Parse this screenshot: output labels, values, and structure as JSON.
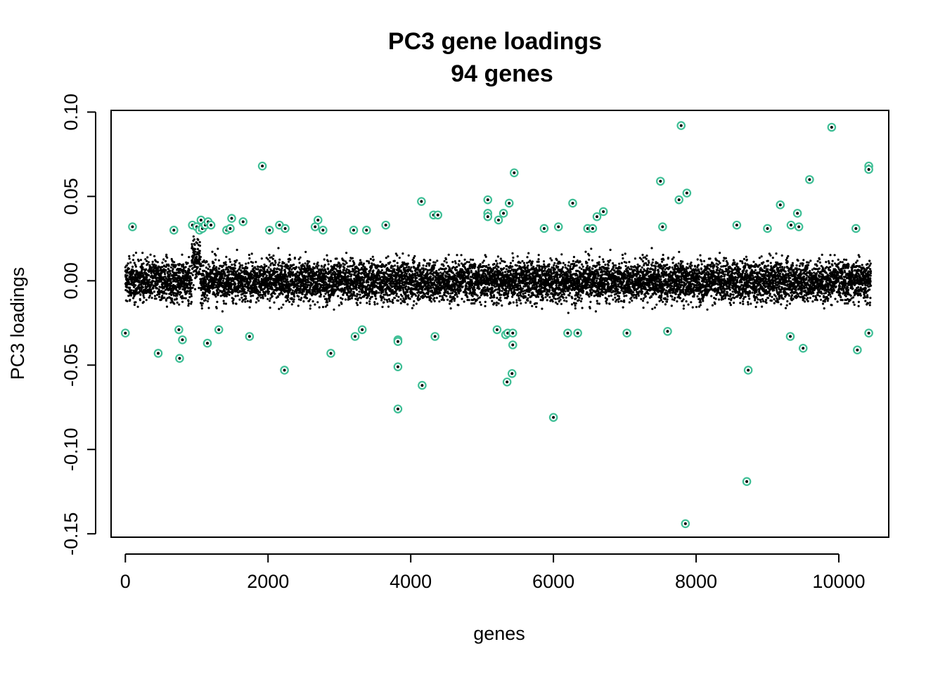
{
  "chart_data": {
    "type": "scatter",
    "title": "PC3 gene loadings",
    "subtitle": "94 genes",
    "xlabel": "genes",
    "ylabel": "PC3 loadings",
    "xlim": [
      -200,
      10700
    ],
    "ylim": [
      -0.152,
      0.101
    ],
    "x_ticks": [
      0,
      2000,
      4000,
      6000,
      8000,
      10000
    ],
    "x_tick_labels": [
      "0",
      "2000",
      "4000",
      "6000",
      "8000",
      "10000"
    ],
    "y_ticks": [
      -0.15,
      -0.1,
      -0.05,
      0.0,
      0.05,
      0.1
    ],
    "y_tick_labels": [
      "-0.15",
      "-0.10",
      "-0.05",
      "0.00",
      "0.05",
      "0.10"
    ],
    "grid": false,
    "legend": "none",
    "colors": {
      "points": "#000000",
      "highlight": "#3fbf96",
      "axis": "#000000"
    },
    "bulk": {
      "description_n_genes": 10450,
      "x_range": [
        0,
        10450
      ],
      "typical_range": [
        -0.02,
        0.02
      ],
      "bump_region": {
        "x": [
          930,
          1050
        ],
        "y_offset": 0.015
      }
    },
    "highlighted_genes": [
      {
        "x": 0,
        "y": -0.031
      },
      {
        "x": 100,
        "y": 0.032
      },
      {
        "x": 460,
        "y": -0.043
      },
      {
        "x": 680,
        "y": 0.03
      },
      {
        "x": 750,
        "y": -0.029
      },
      {
        "x": 760,
        "y": -0.046
      },
      {
        "x": 800,
        "y": -0.035
      },
      {
        "x": 940,
        "y": 0.033
      },
      {
        "x": 1000,
        "y": 0.032
      },
      {
        "x": 1040,
        "y": 0.03
      },
      {
        "x": 1060,
        "y": 0.036
      },
      {
        "x": 1080,
        "y": 0.031
      },
      {
        "x": 1120,
        "y": 0.033
      },
      {
        "x": 1150,
        "y": -0.037
      },
      {
        "x": 1160,
        "y": 0.035
      },
      {
        "x": 1200,
        "y": 0.033
      },
      {
        "x": 1310,
        "y": -0.029
      },
      {
        "x": 1420,
        "y": 0.03
      },
      {
        "x": 1470,
        "y": 0.031
      },
      {
        "x": 1490,
        "y": 0.037
      },
      {
        "x": 1650,
        "y": 0.035
      },
      {
        "x": 1740,
        "y": -0.033
      },
      {
        "x": 1920,
        "y": 0.068
      },
      {
        "x": 2020,
        "y": 0.03
      },
      {
        "x": 2160,
        "y": 0.033
      },
      {
        "x": 2230,
        "y": -0.053
      },
      {
        "x": 2660,
        "y": 0.032
      },
      {
        "x": 2700,
        "y": 0.036
      },
      {
        "x": 2770,
        "y": 0.03
      },
      {
        "x": 2880,
        "y": -0.043
      },
      {
        "x": 3200,
        "y": 0.03
      },
      {
        "x": 3220,
        "y": -0.033
      },
      {
        "x": 3320,
        "y": -0.029
      },
      {
        "x": 3380,
        "y": 0.03
      },
      {
        "x": 3650,
        "y": 0.033
      },
      {
        "x": 3820,
        "y": -0.035
      },
      {
        "x": 3820,
        "y": -0.036
      },
      {
        "x": 3820,
        "y": -0.051
      },
      {
        "x": 3820,
        "y": -0.076
      },
      {
        "x": 4150,
        "y": 0.047
      },
      {
        "x": 4160,
        "y": -0.062
      },
      {
        "x": 4320,
        "y": 0.039
      },
      {
        "x": 4340,
        "y": -0.033
      },
      {
        "x": 4380,
        "y": 0.039
      },
      {
        "x": 5080,
        "y": 0.048
      },
      {
        "x": 5080,
        "y": 0.04
      },
      {
        "x": 5080,
        "y": 0.038
      },
      {
        "x": 5210,
        "y": -0.029
      },
      {
        "x": 5300,
        "y": 0.04
      },
      {
        "x": 5330,
        "y": -0.032
      },
      {
        "x": 5350,
        "y": -0.06
      },
      {
        "x": 5360,
        "y": -0.031
      },
      {
        "x": 5380,
        "y": 0.046
      },
      {
        "x": 5420,
        "y": -0.055
      },
      {
        "x": 5430,
        "y": -0.038
      },
      {
        "x": 5430,
        "y": -0.031
      },
      {
        "x": 5450,
        "y": 0.064
      },
      {
        "x": 5870,
        "y": 0.031
      },
      {
        "x": 6000,
        "y": -0.081
      },
      {
        "x": 6070,
        "y": 0.032
      },
      {
        "x": 6200,
        "y": -0.031
      },
      {
        "x": 6270,
        "y": 0.046
      },
      {
        "x": 6340,
        "y": -0.031
      },
      {
        "x": 6480,
        "y": 0.031
      },
      {
        "x": 6550,
        "y": 0.031
      },
      {
        "x": 6610,
        "y": 0.038
      },
      {
        "x": 6700,
        "y": 0.041
      },
      {
        "x": 7500,
        "y": 0.059
      },
      {
        "x": 7530,
        "y": 0.032
      },
      {
        "x": 7600,
        "y": -0.03
      },
      {
        "x": 7760,
        "y": 0.048
      },
      {
        "x": 7790,
        "y": 0.092
      },
      {
        "x": 7850,
        "y": -0.144
      },
      {
        "x": 7870,
        "y": 0.052
      },
      {
        "x": 8570,
        "y": 0.033
      },
      {
        "x": 8710,
        "y": -0.119
      },
      {
        "x": 8730,
        "y": -0.053
      },
      {
        "x": 9180,
        "y": 0.045
      },
      {
        "x": 9320,
        "y": -0.033
      },
      {
        "x": 9330,
        "y": 0.033
      },
      {
        "x": 9420,
        "y": 0.04
      },
      {
        "x": 9440,
        "y": 0.032
      },
      {
        "x": 9500,
        "y": -0.04
      },
      {
        "x": 9590,
        "y": 0.06
      },
      {
        "x": 9900,
        "y": 0.091
      },
      {
        "x": 10240,
        "y": 0.031
      },
      {
        "x": 10260,
        "y": -0.041
      },
      {
        "x": 10420,
        "y": 0.068
      },
      {
        "x": 10420,
        "y": 0.066
      },
      {
        "x": 10420,
        "y": -0.031
      },
      {
        "x": 9000,
        "y": 0.031
      },
      {
        "x": 5230,
        "y": 0.036
      },
      {
        "x": 2240,
        "y": 0.031
      },
      {
        "x": 7030,
        "y": -0.031
      }
    ]
  }
}
